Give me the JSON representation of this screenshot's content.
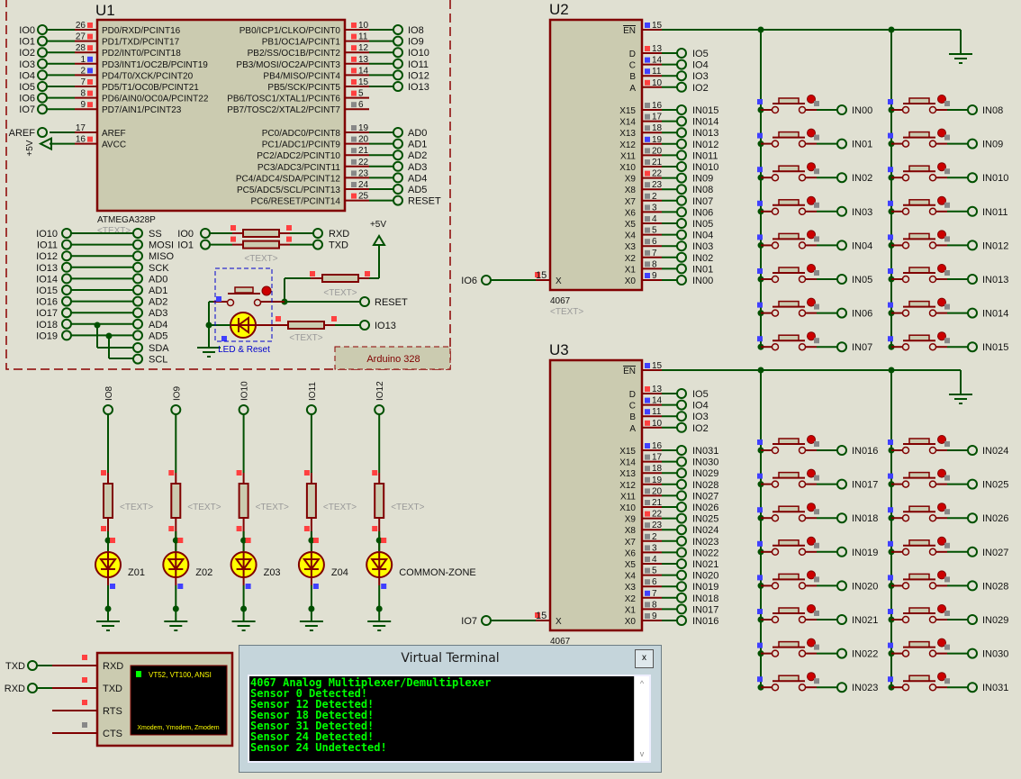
{
  "colors": {
    "background": "#e0e0d2",
    "chip_fill": "#cbcbb0",
    "chip_border": "#800000",
    "wire": "#005000",
    "pin": "#800000",
    "high": "#ff4040",
    "low": "#4040ff",
    "float": "#888888",
    "led": "#ffff00",
    "terminal_text": "#00ff00"
  },
  "u1": {
    "ref": "U1",
    "part": "ATMEGA328P",
    "text": "<TEXT>",
    "left_pins": [
      {
        "num": "26",
        "name": "PD0/RXD/PCINT16",
        "net": "IO0",
        "state": "high"
      },
      {
        "num": "27",
        "name": "PD1/TXD/PCINT17",
        "net": "IO1",
        "state": "high"
      },
      {
        "num": "28",
        "name": "PD2/INT0/PCINT18",
        "net": "IO2",
        "state": "high"
      },
      {
        "num": "1",
        "name": "PD3/INT1/OC2B/PCINT19",
        "net": "IO3",
        "state": "low"
      },
      {
        "num": "2",
        "name": "PD4/T0/XCK/PCINT20",
        "net": "IO4",
        "state": "low"
      },
      {
        "num": "7",
        "name": "PD5/T1/OC0B/PCINT21",
        "net": "IO5",
        "state": "high"
      },
      {
        "num": "8",
        "name": "PD6/AIN0/OC0A/PCINT22",
        "net": "IO6",
        "state": "high"
      },
      {
        "num": "9",
        "name": "PD7/AIN1/PCINT23",
        "net": "IO7",
        "state": "high"
      }
    ],
    "power_pins": [
      {
        "num": "17",
        "name": "AREF",
        "net": "AREF",
        "state": ""
      },
      {
        "num": "16",
        "name": "AVCC",
        "net": "+5V",
        "state": "high"
      }
    ],
    "right_pins": [
      {
        "num": "10",
        "name": "PB0/ICP1/CLKO/PCINT0",
        "net": "IO8",
        "state": "high"
      },
      {
        "num": "11",
        "name": "PB1/OC1A/PCINT1",
        "net": "IO9",
        "state": "high"
      },
      {
        "num": "12",
        "name": "PB2/SS/OC1B/PCINT2",
        "net": "IO10",
        "state": "high"
      },
      {
        "num": "13",
        "name": "PB3/MOSI/OC2A/PCINT3",
        "net": "IO11",
        "state": "high"
      },
      {
        "num": "14",
        "name": "PB4/MISO/PCINT4",
        "net": "IO12",
        "state": "high"
      },
      {
        "num": "15",
        "name": "PB5/SCK/PCINT5",
        "net": "IO13",
        "state": "high"
      },
      {
        "num": "5",
        "name": "PB6/TOSC1/XTAL1/PCINT6",
        "net": "",
        "state": "high"
      },
      {
        "num": "6",
        "name": "PB7/TOSC2/XTAL2/PCINT7",
        "net": "",
        "state": "float"
      }
    ],
    "adc_pins": [
      {
        "num": "19",
        "name": "PC0/ADC0/PCINT8",
        "net": "AD0",
        "state": "float"
      },
      {
        "num": "20",
        "name": "PC1/ADC1/PCINT9",
        "net": "AD1",
        "state": "float"
      },
      {
        "num": "21",
        "name": "PC2/ADC2/PCINT10",
        "net": "AD2",
        "state": "float"
      },
      {
        "num": "22",
        "name": "PC3/ADC3/PCINT11",
        "net": "AD3",
        "state": "float"
      },
      {
        "num": "23",
        "name": "PC4/ADC4/SDA/PCINT12",
        "net": "AD4",
        "state": "float"
      },
      {
        "num": "24",
        "name": "PC5/ADC5/SCL/PCINT13",
        "net": "AD5",
        "state": "float"
      },
      {
        "num": "25",
        "name": "PC6/RESET/PCINT14",
        "net": "RESET",
        "state": "high"
      }
    ]
  },
  "aliases": [
    {
      "from": "IO10",
      "to": "SS"
    },
    {
      "from": "IO11",
      "to": "MOSI"
    },
    {
      "from": "IO12",
      "to": "MISO"
    },
    {
      "from": "IO13",
      "to": "SCK"
    },
    {
      "from": "IO14",
      "to": "AD0"
    },
    {
      "from": "IO15",
      "to": "AD1"
    },
    {
      "from": "IO16",
      "to": "AD2"
    },
    {
      "from": "IO17",
      "to": "AD3"
    },
    {
      "from": "IO18",
      "to": "AD4"
    },
    {
      "from": "IO19",
      "to": "AD5"
    }
  ],
  "i2c": [
    "SDA",
    "SCL"
  ],
  "serial": [
    {
      "from": "IO0",
      "to": "RXD"
    },
    {
      "from": "IO1",
      "to": "TXD"
    }
  ],
  "serial_text": "<TEXT>",
  "reset_circuit": {
    "supply": "+5V",
    "reset_net": "RESET",
    "led_net": "IO13",
    "group_label": "LED & Reset",
    "resistor_text": "<TEXT>"
  },
  "board_label": "Arduino 328",
  "mux": [
    {
      "ref": "U2",
      "part": "4067",
      "text": "<TEXT>",
      "en": "EN",
      "en_num": "15",
      "en_state": "low",
      "x_label": "X",
      "x_net": "IO6",
      "select": [
        {
          "name": "D",
          "num": "13",
          "net": "IO5",
          "state": "high"
        },
        {
          "name": "C",
          "num": "14",
          "net": "IO4",
          "state": "low"
        },
        {
          "name": "B",
          "num": "11",
          "net": "IO3",
          "state": "low"
        },
        {
          "name": "A",
          "num": "10",
          "net": "IO2",
          "state": "high"
        }
      ],
      "channels": [
        {
          "name": "X15",
          "num": "16",
          "net": "IN015",
          "state": "float"
        },
        {
          "name": "X14",
          "num": "17",
          "net": "IN014",
          "state": "float"
        },
        {
          "name": "X13",
          "num": "18",
          "net": "IN013",
          "state": "float"
        },
        {
          "name": "X12",
          "num": "19",
          "net": "IN012",
          "state": "low"
        },
        {
          "name": "X11",
          "num": "20",
          "net": "IN011",
          "state": "float"
        },
        {
          "name": "X10",
          "num": "21",
          "net": "IN010",
          "state": "float"
        },
        {
          "name": "X9",
          "num": "22",
          "net": "IN09",
          "state": "high"
        },
        {
          "name": "X8",
          "num": "23",
          "net": "IN08",
          "state": "float"
        },
        {
          "name": "X7",
          "num": "2",
          "net": "IN07",
          "state": "float"
        },
        {
          "name": "X6",
          "num": "3",
          "net": "IN06",
          "state": "float"
        },
        {
          "name": "X5",
          "num": "4",
          "net": "IN05",
          "state": "float"
        },
        {
          "name": "X4",
          "num": "5",
          "net": "IN04",
          "state": "float"
        },
        {
          "name": "X3",
          "num": "6",
          "net": "IN03",
          "state": "float"
        },
        {
          "name": "X2",
          "num": "7",
          "net": "IN02",
          "state": "float"
        },
        {
          "name": "X1",
          "num": "8",
          "net": "IN01",
          "state": "float"
        },
        {
          "name": "X0",
          "num": "9",
          "net": "IN00",
          "state": "low"
        }
      ],
      "switches": [
        "IN00",
        "IN01",
        "IN02",
        "IN03",
        "IN04",
        "IN05",
        "IN06",
        "IN07",
        "IN08",
        "IN09",
        "IN010",
        "IN011",
        "IN012",
        "IN013",
        "IN014",
        "IN015"
      ]
    },
    {
      "ref": "U3",
      "part": "4067",
      "text": "",
      "en": "EN",
      "en_num": "15",
      "en_state": "low",
      "x_label": "X",
      "x_net": "IO7",
      "select": [
        {
          "name": "D",
          "num": "13",
          "net": "IO5",
          "state": "high"
        },
        {
          "name": "C",
          "num": "14",
          "net": "IO4",
          "state": "low"
        },
        {
          "name": "B",
          "num": "11",
          "net": "IO3",
          "state": "low"
        },
        {
          "name": "A",
          "num": "10",
          "net": "IO2",
          "state": "high"
        }
      ],
      "channels": [
        {
          "name": "X15",
          "num": "16",
          "net": "IN031",
          "state": "low"
        },
        {
          "name": "X14",
          "num": "17",
          "net": "IN030",
          "state": "float"
        },
        {
          "name": "X13",
          "num": "18",
          "net": "IN029",
          "state": "float"
        },
        {
          "name": "X12",
          "num": "19",
          "net": "IN028",
          "state": "float"
        },
        {
          "name": "X11",
          "num": "20",
          "net": "IN027",
          "state": "float"
        },
        {
          "name": "X10",
          "num": "21",
          "net": "IN026",
          "state": "float"
        },
        {
          "name": "X9",
          "num": "22",
          "net": "IN025",
          "state": "high"
        },
        {
          "name": "X8",
          "num": "23",
          "net": "IN024",
          "state": "float"
        },
        {
          "name": "X7",
          "num": "2",
          "net": "IN023",
          "state": "float"
        },
        {
          "name": "X6",
          "num": "3",
          "net": "IN022",
          "state": "float"
        },
        {
          "name": "X5",
          "num": "4",
          "net": "IN021",
          "state": "float"
        },
        {
          "name": "X4",
          "num": "5",
          "net": "IN020",
          "state": "float"
        },
        {
          "name": "X3",
          "num": "6",
          "net": "IN019",
          "state": "float"
        },
        {
          "name": "X2",
          "num": "7",
          "net": "IN018",
          "state": "low"
        },
        {
          "name": "X1",
          "num": "8",
          "net": "IN017",
          "state": "float"
        },
        {
          "name": "X0",
          "num": "9",
          "net": "IN016",
          "state": "float"
        }
      ],
      "switches": [
        "IN016",
        "IN017",
        "IN018",
        "IN019",
        "IN020",
        "IN021",
        "IN022",
        "IN023",
        "IN024",
        "IN025",
        "IN026",
        "IN027",
        "IN028",
        "IN029",
        "IN030",
        "IN031"
      ]
    }
  ],
  "leds": [
    {
      "net": "IO8",
      "label": "Z01",
      "text": "<TEXT>"
    },
    {
      "net": "IO9",
      "label": "Z02",
      "text": "<TEXT>"
    },
    {
      "net": "IO10",
      "label": "Z03",
      "text": "<TEXT>"
    },
    {
      "net": "IO11",
      "label": "Z04",
      "text": "<TEXT>"
    },
    {
      "net": "IO12",
      "label": "COMMON-ZONE",
      "text": "<TEXT>"
    }
  ],
  "terminal_device": {
    "pins": [
      {
        "name": "RXD",
        "net": "TXD",
        "state": "high"
      },
      {
        "name": "TXD",
        "net": "RXD",
        "state": "high"
      },
      {
        "name": "RTS",
        "net": "",
        "state": "high"
      },
      {
        "name": "CTS",
        "net": "",
        "state": "float"
      }
    ],
    "screen_top": "VT52, VT100, ANSI",
    "screen_bottom": "Xmodem, Ymodem, Zmodem"
  },
  "virtual_terminal": {
    "title": "Virtual Terminal",
    "close_label": "x",
    "scroll_up": "^",
    "scroll_down": "v",
    "lines": [
      "4067 Analog Multiplexer/Demultiplexer",
      "Sensor 0 Detected!",
      "Sensor 12 Detected!",
      "Sensor 18 Detected!",
      "Sensor 31 Detected!",
      "Sensor 24 Detected!",
      "Sensor 24 Undetected!"
    ]
  }
}
